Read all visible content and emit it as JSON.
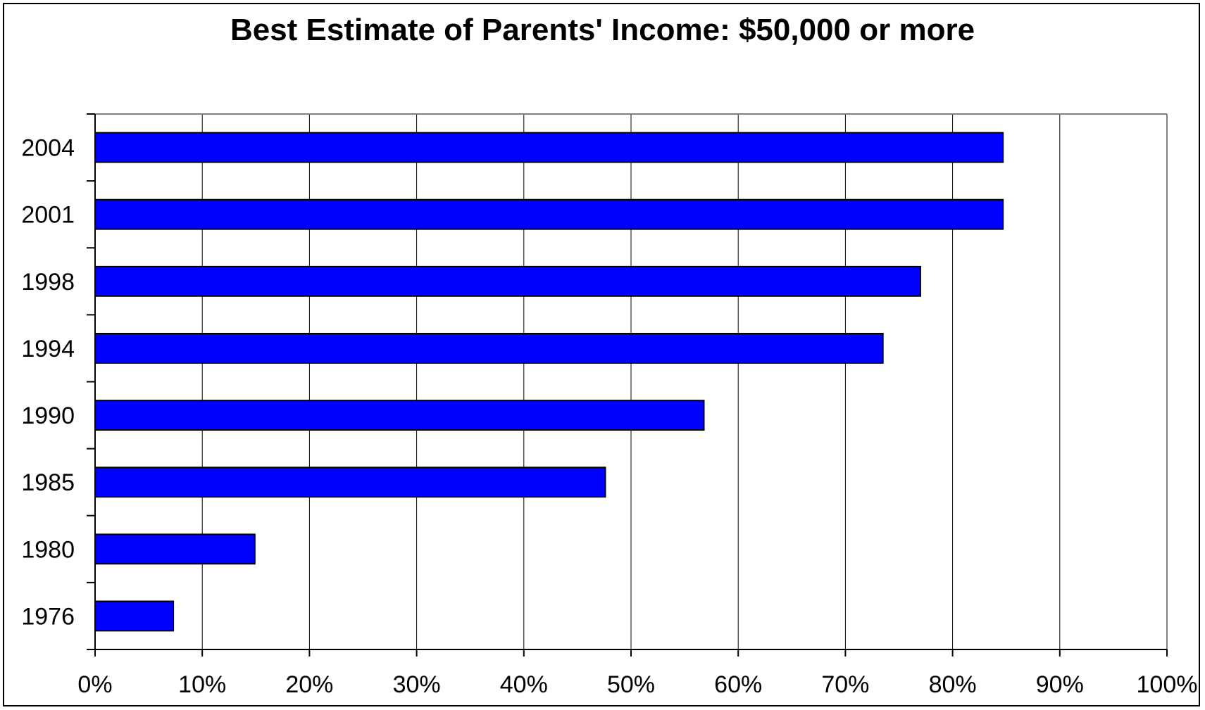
{
  "chart_data": {
    "type": "bar",
    "orientation": "horizontal",
    "title": "Best Estimate of Parents' Income: $50,000 or more",
    "xlabel": "",
    "ylabel": "",
    "categories": [
      "2004",
      "2001",
      "1998",
      "1994",
      "1990",
      "1985",
      "1980",
      "1976"
    ],
    "values": [
      84.7,
      84.7,
      77.0,
      73.5,
      56.8,
      47.6,
      14.9,
      7.3
    ],
    "xlim": [
      0,
      100
    ],
    "x_ticks": [
      "0%",
      "10%",
      "20%",
      "30%",
      "40%",
      "50%",
      "60%",
      "70%",
      "80%",
      "90%",
      "100%"
    ],
    "grid": "vertical",
    "legend": "none",
    "bar_color": "#0000FF",
    "bar_edge_color": "#000000",
    "gridline_color": "#000000"
  }
}
